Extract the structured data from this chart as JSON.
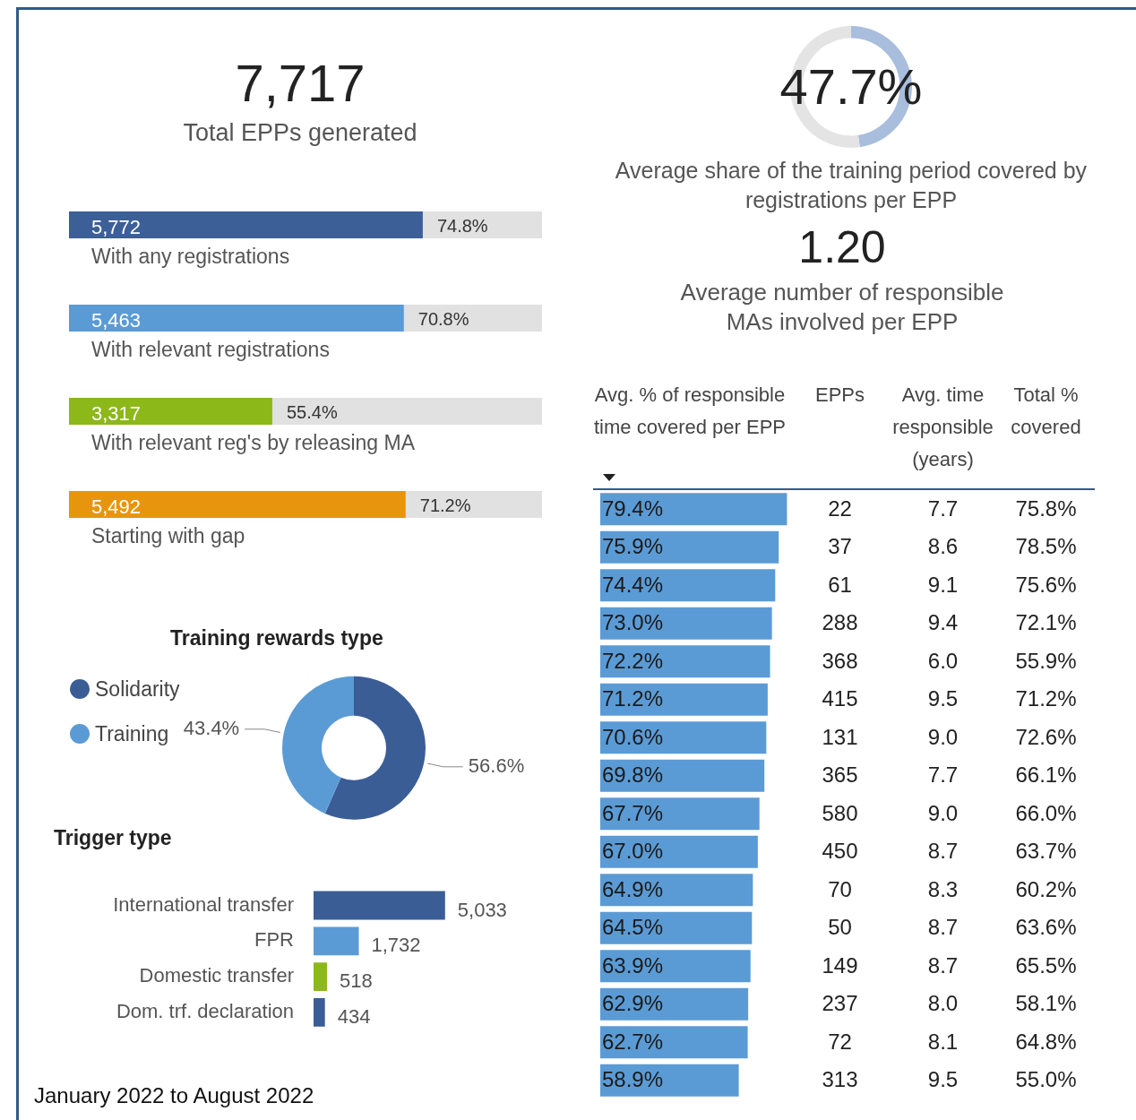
{
  "chart_data": [
    {
      "type": "other",
      "title": "7,717",
      "subtitle": "Total EPPs generated"
    },
    {
      "type": "bar",
      "orientation": "horizontal",
      "categories": [
        "With any registrations",
        "With relevant registrations",
        "With relevant reg's by releasing MA",
        "Starting with gap"
      ],
      "values": [
        5772,
        5463,
        3317,
        5492
      ],
      "colors": [
        "#3c5f98",
        "#5b9bd5",
        "#8cb81a",
        "#e8950e"
      ],
      "xlim": [
        0,
        7717
      ],
      "value_labels": [
        "5,772",
        "5,463",
        "3,317",
        "5,492"
      ],
      "annotations": [
        "74.8%",
        "70.8%",
        "55.4%",
        "71.2%"
      ]
    },
    {
      "type": "donut",
      "categories": [
        null,
        null
      ],
      "values": [
        47.7,
        52.3
      ],
      "colors": [
        "#a9bedc",
        "#e4e4e4"
      ],
      "value_labels": [
        "47.7%",
        null
      ],
      "subtitle": "Average share of the training period covered by registrations per EPP"
    },
    {
      "type": "other",
      "title": "1.20",
      "subtitle": "Average number of responsible MAs involved per EPP"
    },
    {
      "type": "donut",
      "title": "Training rewards type",
      "categories": [
        "Solidarity",
        "Training"
      ],
      "values": [
        56.6,
        43.4
      ],
      "colors": [
        "#3a5d96",
        "#5b9bd5"
      ],
      "value_labels": [
        "56.6%",
        "43.4%"
      ],
      "legend": "top left"
    },
    {
      "type": "bar",
      "orientation": "horizontal",
      "title": "Trigger type",
      "categories": [
        "International transfer",
        "FPR",
        "Domestic transfer",
        "Dom. trf. declaration"
      ],
      "values": [
        5033,
        1732,
        518,
        434
      ],
      "colors": [
        "#3a5d96",
        "#5b9bd5",
        "#8cb81a",
        "#3a5d96"
      ],
      "value_labels": [
        "5,033",
        "1,732",
        "518",
        "434"
      ],
      "annotations": [
        "January 2022 to August 2022"
      ]
    },
    {
      "type": "bar",
      "orientation": "horizontal",
      "title": "Avg. % of responsible time covered per EPP",
      "categories": [
        null,
        null,
        null,
        null,
        null,
        null,
        null,
        null,
        null,
        null,
        null,
        null,
        null,
        null,
        null,
        null
      ],
      "values": [
        79.4,
        75.9,
        74.4,
        73.0,
        72.2,
        71.2,
        70.6,
        69.8,
        67.7,
        67.0,
        64.9,
        64.5,
        63.9,
        62.9,
        62.7,
        58.9
      ],
      "color": "#5b9bd5",
      "value_labels": [
        "79.4%",
        "75.9%",
        "74.4%",
        "73.0%",
        "72.2%",
        "71.2%",
        "70.6%",
        "69.8%",
        "67.7%",
        "67.0%",
        "64.9%",
        "64.5%",
        "63.9%",
        "62.9%",
        "62.7%",
        "58.9%"
      ]
    },
    {
      "type": "heatmap",
      "categories": [
        "EPPs",
        "Avg. time responsible (years)",
        "Total % covered"
      ],
      "y_categories": [
        null,
        null,
        null,
        null,
        null,
        null,
        null,
        null,
        null,
        null,
        null,
        null,
        null,
        null,
        null,
        null
      ],
      "cells": [
        [
          22,
          7.7,
          75.8
        ],
        [
          37,
          8.6,
          78.5
        ],
        [
          61,
          9.1,
          75.6
        ],
        [
          288,
          9.4,
          72.1
        ],
        [
          368,
          6.0,
          55.9
        ],
        [
          415,
          9.5,
          71.2
        ],
        [
          131,
          9.0,
          72.6
        ],
        [
          365,
          7.7,
          66.1
        ],
        [
          580,
          9.0,
          66.0
        ],
        [
          450,
          8.7,
          63.7
        ],
        [
          70,
          8.3,
          60.2
        ],
        [
          50,
          8.7,
          63.6
        ],
        [
          149,
          8.7,
          65.5
        ],
        [
          237,
          8.0,
          58.1
        ],
        [
          72,
          8.1,
          64.8
        ],
        [
          313,
          9.5,
          55.0
        ]
      ],
      "cell_labels": [
        [
          "22",
          "7.7",
          "75.8%"
        ],
        [
          "37",
          "8.6",
          "78.5%"
        ],
        [
          "61",
          "9.1",
          "75.6%"
        ],
        [
          "288",
          "9.4",
          "72.1%"
        ],
        [
          "368",
          "6.0",
          "55.9%"
        ],
        [
          "415",
          "9.5",
          "71.2%"
        ],
        [
          "131",
          "9.0",
          "72.6%"
        ],
        [
          "365",
          "7.7",
          "66.1%"
        ],
        [
          "580",
          "9.0",
          "66.0%"
        ],
        [
          "450",
          "8.7",
          "63.7%"
        ],
        [
          "70",
          "8.3",
          "60.2%"
        ],
        [
          "50",
          "8.7",
          "63.6%"
        ],
        [
          "149",
          "8.7",
          "65.5%"
        ],
        [
          "237",
          "8.0",
          "58.1%"
        ],
        [
          "72",
          "8.1",
          "64.8%"
        ],
        [
          "313",
          "9.5",
          "55.0%"
        ]
      ]
    }
  ]
}
